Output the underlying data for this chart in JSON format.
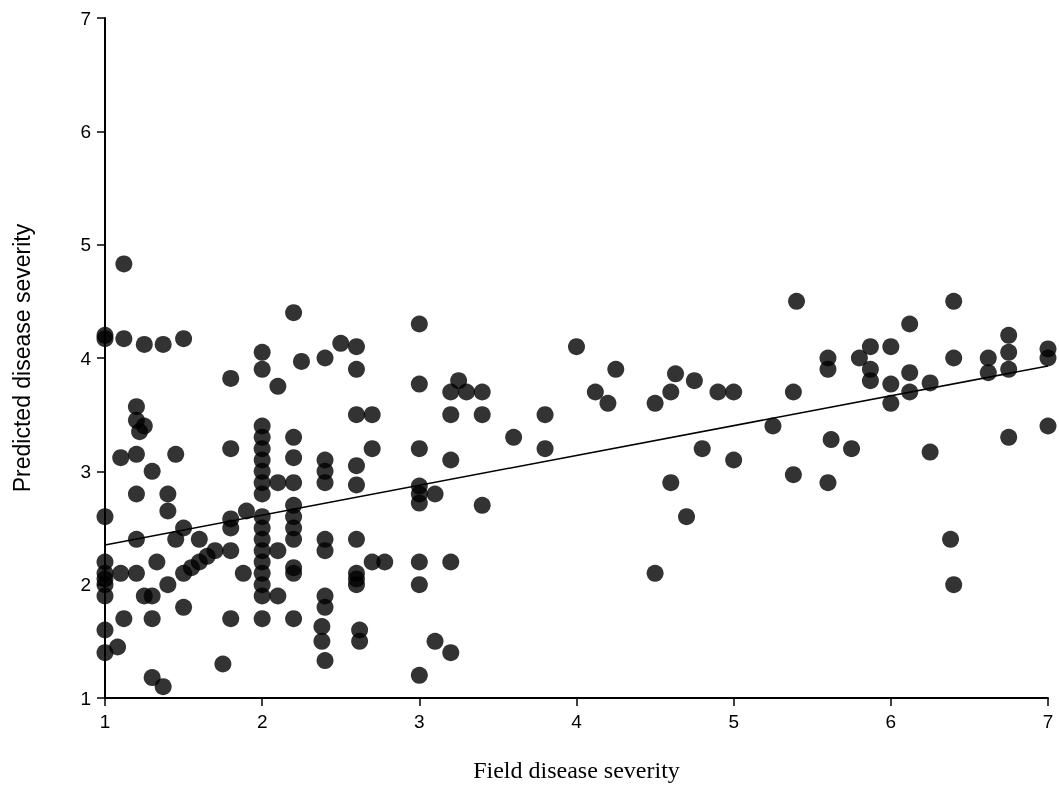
{
  "chart_data": {
    "type": "scatter",
    "xlabel": "Field disease severity",
    "ylabel": "Predicted disease severity",
    "xlim": [
      1,
      7
    ],
    "ylim": [
      1,
      7
    ],
    "xticks": [
      1,
      2,
      3,
      4,
      5,
      6,
      7
    ],
    "yticks": [
      1,
      2,
      3,
      4,
      5,
      6,
      7
    ],
    "grid": false,
    "marker": "circle",
    "series": [
      {
        "color": "#000000",
        "x": [
          1,
          1,
          1,
          1,
          1,
          1,
          1,
          1,
          1,
          1,
          1.12,
          1.12,
          1.25,
          1.37,
          1.5,
          1.2,
          1.2,
          1.25,
          1.22,
          1.1,
          1.2,
          1.45,
          1.3,
          1.2,
          1.4,
          1.4,
          1.2,
          1.45,
          1.5,
          1.6,
          1.1,
          1.2,
          1.33,
          1.25,
          1.3,
          1.4,
          1.5,
          1.55,
          1.65,
          1.7,
          1.6,
          1.12,
          1.3,
          1.5,
          1.08,
          1.3,
          1.37,
          1.75,
          1.8,
          1.8,
          1.8,
          1.8,
          1.8,
          1.88,
          1.8,
          1.9,
          2,
          2,
          2,
          2,
          2,
          2,
          2,
          2,
          2,
          2,
          2,
          2,
          2,
          2,
          2,
          2,
          2,
          2,
          2.1,
          2.1,
          2.1,
          2.1,
          2.2,
          2.2,
          2.2,
          2.2,
          2.2,
          2.2,
          2.2,
          2.2,
          2.2,
          2.2,
          2.2,
          2.25,
          2.4,
          2.4,
          2.4,
          2.4,
          2.4,
          2.4,
          2.4,
          2.4,
          2.38,
          2.38,
          2.4,
          2.5,
          2.6,
          2.6,
          2.6,
          2.7,
          2.7,
          2.6,
          2.6,
          2.6,
          2.6,
          2.6,
          2.6,
          2.62,
          2.62,
          2.7,
          2.78,
          3,
          3,
          3,
          3,
          3,
          3,
          3,
          3,
          3,
          3.1,
          3.1,
          3.2,
          3.2,
          3.2,
          3.2,
          3.2,
          3.25,
          3.3,
          3.4,
          3.4,
          3.4,
          3.6,
          3.8,
          3.8,
          4,
          4.12,
          4.2,
          4.25,
          4.5,
          4.6,
          4.63,
          4.75,
          4.6,
          4.7,
          4.5,
          4.8,
          4.9,
          5,
          5,
          5.25,
          5.4,
          5.38,
          5.38,
          5.6,
          5.6,
          5.62,
          5.6,
          5.75,
          5.8,
          5.87,
          5.87,
          5.87,
          6,
          6,
          6,
          6.12,
          6.12,
          6.12,
          6.25,
          6.25,
          6.4,
          6.4,
          6.38,
          6.4,
          6.62,
          6.62,
          6.75,
          6.75,
          6.75,
          6.75,
          7,
          7,
          7
        ],
        "values": [
          4.2,
          4.17,
          2.6,
          2.2,
          2.1,
          2.05,
          2,
          1.9,
          1.6,
          1.4,
          4.83,
          4.17,
          4.12,
          4.12,
          4.17,
          3.57,
          3.45,
          3.4,
          3.35,
          3.12,
          3.15,
          3.15,
          3,
          2.8,
          2.8,
          2.65,
          2.4,
          2.4,
          2.5,
          2.4,
          2.1,
          2.1,
          2.2,
          1.9,
          1.9,
          2,
          2.1,
          2.15,
          2.25,
          2.3,
          2.2,
          1.7,
          1.7,
          1.8,
          1.45,
          1.18,
          1.1,
          1.3,
          3.82,
          3.2,
          2.5,
          2.58,
          2.3,
          2.1,
          1.7,
          2.65,
          4.05,
          3.9,
          3.4,
          3.3,
          3.2,
          3.1,
          3,
          2.9,
          2.8,
          2.6,
          2.5,
          2.4,
          2.3,
          2.2,
          2.1,
          2,
          1.9,
          1.7,
          3.75,
          2.3,
          1.9,
          2.9,
          4.4,
          3.3,
          3.12,
          2.9,
          2.7,
          2.6,
          2.5,
          2.4,
          2.15,
          2.1,
          1.7,
          3.97,
          4,
          3.1,
          3,
          2.9,
          2.4,
          2.3,
          1.9,
          1.8,
          1.63,
          1.5,
          1.33,
          4.13,
          4.1,
          3.9,
          3.5,
          3.5,
          3.2,
          3.05,
          2.88,
          2.4,
          2.1,
          2.05,
          2,
          1.6,
          1.5,
          2.2,
          2.2,
          4.3,
          3.77,
          3.2,
          2.87,
          2.8,
          2.72,
          2.2,
          2,
          1.2,
          2.8,
          1.5,
          1.4,
          2.2,
          3.1,
          3.5,
          3.7,
          3.8,
          3.7,
          3.7,
          3.5,
          2.7,
          3.3,
          3.5,
          3.2,
          4.1,
          3.7,
          3.6,
          3.9,
          3.6,
          3.7,
          3.86,
          3.8,
          2.9,
          2.6,
          2.1,
          3.2,
          3.7,
          3.7,
          3.1,
          3.4,
          4.5,
          3.7,
          2.97,
          4,
          3.9,
          3.28,
          2.9,
          3.2,
          4,
          4.1,
          3.9,
          3.8,
          4.1,
          3.77,
          3.6,
          4.3,
          3.87,
          3.7,
          3.78,
          3.17,
          4.5,
          4,
          2.4,
          2,
          4,
          3.87,
          4.2,
          4.05,
          3.9,
          3.3,
          4.08,
          4,
          3.4
        ]
      },
      {
        "type": "line",
        "color": "#000000",
        "marker": "none",
        "x": [
          1,
          7
        ],
        "values": [
          2.35,
          3.93
        ]
      }
    ]
  }
}
